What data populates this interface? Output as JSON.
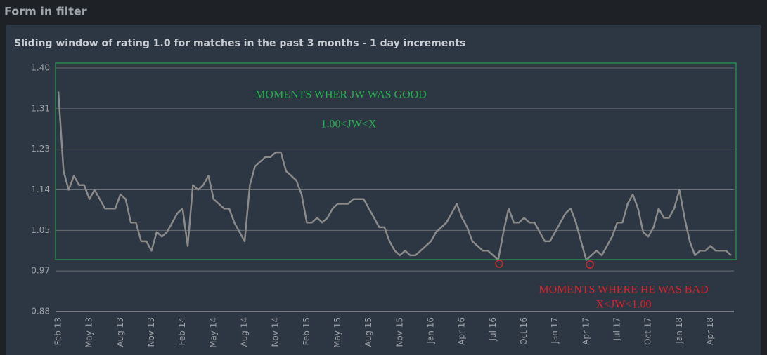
{
  "header": {
    "title": "Form in filter"
  },
  "chart_data": {
    "type": "line",
    "title": "Sliding window of rating 1.0 for matches in the past 3 months - 1 day increments",
    "categories": [
      "Feb 13",
      null,
      null,
      null,
      null,
      null,
      "May 13",
      null,
      null,
      null,
      null,
      null,
      "Aug 13",
      null,
      null,
      null,
      null,
      null,
      "Nov 13",
      null,
      null,
      null,
      null,
      null,
      "Feb 14",
      null,
      null,
      null,
      null,
      null,
      "May 14",
      null,
      null,
      null,
      null,
      null,
      "Aug 14",
      null,
      null,
      null,
      null,
      null,
      "Nov 14",
      null,
      null,
      null,
      null,
      null,
      "Feb 15",
      null,
      null,
      null,
      null,
      null,
      "May 15",
      null,
      null,
      null,
      null,
      null,
      "Aug 15",
      null,
      null,
      null,
      null,
      null,
      "Nov 15",
      null,
      null,
      null,
      null,
      null,
      "Jan 16",
      null,
      null,
      null,
      null,
      null,
      "Apr 16",
      null,
      null,
      null,
      null,
      null,
      "Jul 16",
      null,
      null,
      null,
      null,
      null,
      "Oct 16",
      null,
      null,
      null,
      null,
      null,
      "Jan 17",
      null,
      null,
      null,
      null,
      null,
      "Apr 17",
      null,
      null,
      null,
      null,
      null,
      "Jul 17",
      null,
      null,
      null,
      null,
      null,
      "Oct 17",
      null,
      null,
      null,
      null,
      null,
      "Jan 18",
      null,
      null,
      null,
      null,
      null,
      "Apr 18",
      null,
      null,
      null,
      null
    ],
    "values": [
      1.35,
      1.18,
      1.14,
      1.17,
      1.15,
      1.15,
      1.12,
      1.14,
      1.12,
      1.1,
      1.1,
      1.1,
      1.13,
      1.12,
      1.07,
      1.07,
      1.03,
      1.03,
      1.01,
      1.05,
      1.04,
      1.05,
      1.07,
      1.09,
      1.1,
      1.02,
      1.15,
      1.14,
      1.15,
      1.17,
      1.12,
      1.11,
      1.1,
      1.1,
      1.07,
      1.05,
      1.03,
      1.15,
      1.19,
      1.2,
      1.21,
      1.21,
      1.22,
      1.22,
      1.18,
      1.17,
      1.16,
      1.13,
      1.07,
      1.07,
      1.08,
      1.07,
      1.08,
      1.1,
      1.11,
      1.11,
      1.11,
      1.12,
      1.12,
      1.12,
      1.1,
      1.08,
      1.06,
      1.06,
      1.03,
      1.01,
      1.0,
      1.01,
      1.0,
      1.0,
      1.01,
      1.02,
      1.03,
      1.05,
      1.06,
      1.07,
      1.09,
      1.11,
      1.08,
      1.06,
      1.03,
      1.02,
      1.01,
      1.01,
      1.0,
      0.99,
      1.05,
      1.1,
      1.07,
      1.07,
      1.08,
      1.07,
      1.07,
      1.05,
      1.03,
      1.03,
      1.05,
      1.07,
      1.09,
      1.1,
      1.07,
      1.03,
      0.99,
      1.0,
      1.01,
      1.0,
      1.02,
      1.04,
      1.07,
      1.07,
      1.11,
      1.13,
      1.1,
      1.05,
      1.04,
      1.06,
      1.1,
      1.08,
      1.08,
      1.1,
      1.14,
      1.08,
      1.03,
      1.0,
      1.01,
      1.01,
      1.02,
      1.01,
      1.01,
      1.01,
      1.0
    ],
    "color": "#8a8a8a",
    "ylim": [
      0.88,
      1.4
    ],
    "yticks": [
      {
        "value": 0.88,
        "label": "0.88"
      },
      {
        "value": 0.9667,
        "label": "0.97"
      },
      {
        "value": 1.0533,
        "label": "1.05"
      },
      {
        "value": 1.14,
        "label": "1.14"
      },
      {
        "value": 1.2267,
        "label": "1.23"
      },
      {
        "value": 1.3133,
        "label": "1.31"
      },
      {
        "value": 1.4,
        "label": "1.40"
      }
    ],
    "grid": true,
    "annotations": [
      "MOMENTS WHER JW WAS GOOD",
      "1.00<JW<X",
      "MOMENTS WHERE HE WAS BAD",
      "X<JW<1.00"
    ]
  }
}
